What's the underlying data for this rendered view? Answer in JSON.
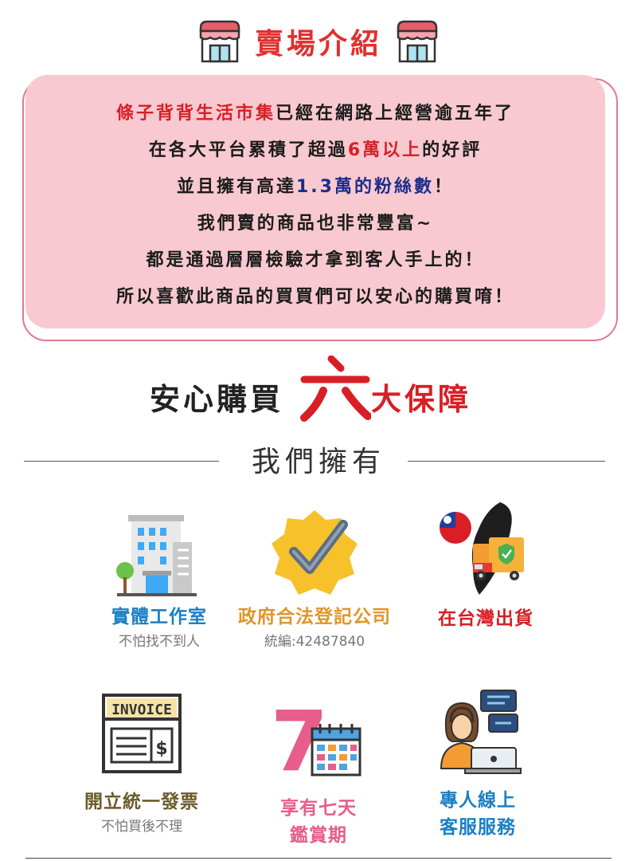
{
  "header": {
    "title": "賣場介紹"
  },
  "intro": {
    "line1": {
      "store": "條子背背生活市集",
      "rest": "已經在網路上經營逾五年了"
    },
    "line2": {
      "pre": "在各大平台累積了超過",
      "highlight": "6萬以上",
      "post": "的好評"
    },
    "line3": {
      "pre": "並且擁有高達",
      "highlight": "1.3萬的粉絲數",
      "post": "！"
    },
    "line4": "我們賣的商品也非常豐富~",
    "line5": "都是通過層層檢驗才拿到客人手上的！",
    "line6": "所以喜歡此商品的買買們可以安心的購買唷！"
  },
  "guarantee": {
    "left": "安心購買",
    "number": "六",
    "right": "大保障"
  },
  "subheading": "我們擁有",
  "features": [
    {
      "title": "實體工作室",
      "subtitle": "不怕找不到人",
      "color": "#1b7fc4",
      "icon": "office-building-icon"
    },
    {
      "title": "政府合法登記公司",
      "subtitle": "統編:42487840",
      "color": "#e0952a",
      "icon": "verified-badge-icon"
    },
    {
      "title": "在台灣出貨",
      "subtitle": "",
      "color": "#d81f26",
      "icon": "taiwan-delivery-icon"
    },
    {
      "title": "開立統一發票",
      "subtitle": "不怕買後不理",
      "color": "#6b5a2a",
      "icon": "invoice-icon",
      "icon_label": "INVOICE"
    },
    {
      "title_line1": "享有七天",
      "title_line2": "鑑賞期",
      "color": "#e85d8a",
      "icon": "seven-day-calendar-icon",
      "icon_number": "7"
    },
    {
      "title_line1": "專人線上",
      "title_line2": "客服服務",
      "color": "#1b7fc4",
      "icon": "customer-service-icon"
    }
  ]
}
